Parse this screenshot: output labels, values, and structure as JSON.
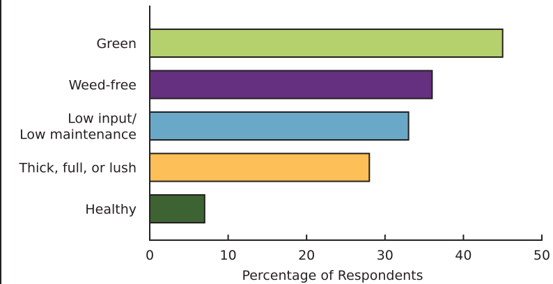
{
  "chart_data": {
    "type": "bar",
    "orientation": "horizontal",
    "categories": [
      [
        "Green"
      ],
      [
        "Weed-free"
      ],
      [
        "Low input/",
        "Low maintenance"
      ],
      [
        "Thick, full, or lush"
      ],
      [
        "Healthy"
      ]
    ],
    "values": [
      45,
      36,
      33,
      28,
      7
    ],
    "colors": [
      "#b5d16d",
      "#64307f",
      "#69a8c7",
      "#fdbf57",
      "#3d6333"
    ],
    "edge_color": "#231f20",
    "xlabel": "Percentage of Respondents",
    "ylabel": "",
    "title": "",
    "xlim": [
      0,
      50
    ],
    "xticks": [
      0,
      10,
      20,
      30,
      40,
      50
    ],
    "grid": false,
    "legend": "none"
  }
}
